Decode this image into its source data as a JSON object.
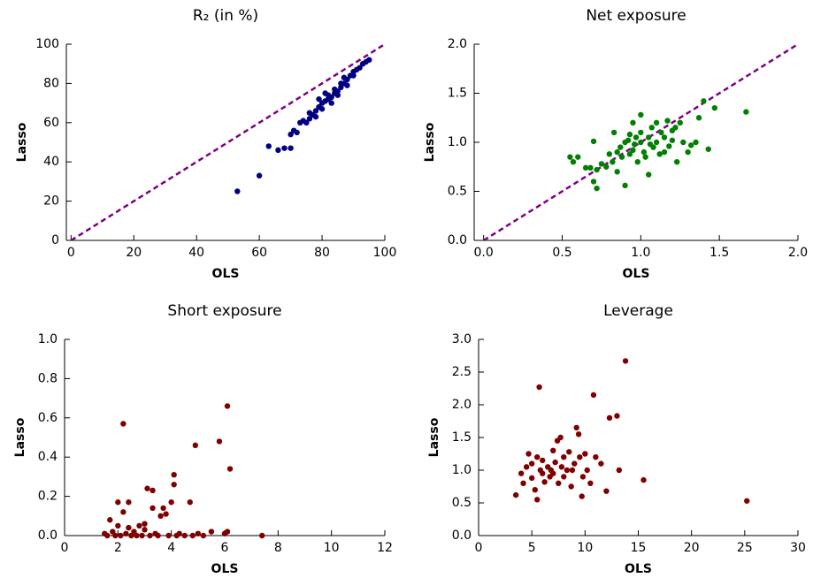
{
  "chart_data": [
    {
      "type": "scatter",
      "title": "R₂ (in %)",
      "x_label": "OLS",
      "y_label": "Lasso",
      "color": "#000080",
      "xlim": [
        -1.5,
        100
      ],
      "ylim": [
        0,
        100
      ],
      "xticks": [
        0,
        20,
        40,
        60,
        80,
        100
      ],
      "yticks": [
        0,
        20,
        40,
        60,
        80,
        100
      ],
      "diagonal": {
        "x": [
          0,
          100
        ],
        "y": [
          0,
          100
        ],
        "color": "#800080"
      },
      "x": [
        53,
        60,
        63,
        66,
        68,
        70,
        70,
        71,
        72,
        73,
        74,
        75,
        76,
        77,
        78,
        78,
        79,
        80,
        80,
        81,
        82,
        82,
        83,
        84,
        84,
        85,
        86,
        86,
        87,
        88,
        88,
        89,
        90,
        90,
        91,
        92,
        93,
        94,
        95,
        85,
        83,
        87,
        79,
        76,
        81
      ],
      "values": [
        25,
        33,
        48,
        46,
        47,
        47,
        54,
        56,
        55,
        60,
        61,
        60,
        62,
        64,
        63,
        66,
        68,
        67,
        70,
        71,
        72,
        74,
        73,
        75,
        77,
        76,
        78,
        80,
        80,
        82,
        79,
        84,
        84,
        86,
        87,
        88,
        90,
        91,
        92,
        74,
        70,
        83,
        72,
        65,
        75
      ]
    },
    {
      "type": "scatter",
      "title": "Net exposure",
      "x_label": "OLS",
      "y_label": "Lasso",
      "color": "#008000",
      "xlim": [
        -0.06,
        2.0
      ],
      "ylim": [
        0,
        2.0
      ],
      "xticks": [
        {
          "value": 0,
          "label": "0.0"
        },
        {
          "value": 0.5,
          "label": "0.5"
        },
        {
          "value": 1,
          "label": "1.0"
        },
        {
          "value": 1.5,
          "label": "1.5"
        },
        {
          "value": 2,
          "label": "2.0"
        }
      ],
      "yticks": [
        {
          "value": 0,
          "label": "0.0"
        },
        {
          "value": 0.5,
          "label": "0.5"
        },
        {
          "value": 1,
          "label": "1.0"
        },
        {
          "value": 1.5,
          "label": "1.5"
        },
        {
          "value": 2,
          "label": "2.0"
        }
      ],
      "diagonal": {
        "x": [
          0,
          2
        ],
        "y": [
          0,
          2
        ],
        "color": "#800080"
      },
      "x": [
        0.55,
        0.57,
        0.6,
        0.65,
        0.68,
        0.7,
        0.7,
        0.72,
        0.72,
        0.75,
        0.78,
        0.8,
        0.82,
        0.83,
        0.85,
        0.85,
        0.87,
        0.88,
        0.9,
        0.9,
        0.92,
        0.93,
        0.95,
        0.95,
        0.97,
        0.98,
        1.0,
        1.0,
        1.0,
        1.02,
        1.03,
        1.05,
        1.05,
        1.07,
        1.08,
        1.1,
        1.1,
        1.12,
        1.13,
        1.15,
        1.15,
        1.17,
        1.18,
        1.2,
        1.2,
        1.22,
        1.23,
        1.25,
        1.27,
        1.3,
        1.32,
        1.35,
        1.37,
        1.4,
        1.43,
        1.47,
        1.67,
        0.96,
        1.06,
        0.93
      ],
      "values": [
        0.85,
        0.8,
        0.85,
        0.74,
        0.74,
        0.6,
        1.01,
        0.53,
        0.72,
        0.78,
        0.75,
        0.88,
        0.8,
        1.1,
        0.7,
        0.9,
        0.95,
        0.85,
        1.0,
        0.56,
        1.02,
        0.88,
        0.92,
        1.2,
        1.05,
        0.8,
        1.0,
        1.1,
        1.28,
        0.9,
        0.85,
        1.05,
        0.67,
        1.15,
        0.95,
        1.0,
        1.2,
        0.88,
        1.1,
        1.05,
        0.9,
        1.22,
        0.96,
        1.12,
        1.02,
        1.15,
        0.8,
        1.2,
        1.0,
        0.9,
        0.97,
        1.0,
        1.25,
        1.42,
        0.93,
        1.35,
        1.31,
        0.98,
        0.98,
        1.08
      ]
    },
    {
      "type": "scatter",
      "title": "Short exposure",
      "x_label": "OLS",
      "y_label": "Lasso",
      "color": "#800000",
      "xlim": [
        0,
        12
      ],
      "ylim": [
        0,
        1.0
      ],
      "xticks": [
        0,
        2,
        4,
        6,
        8,
        10,
        12
      ],
      "yticks": [
        {
          "value": 0,
          "label": "0.0"
        },
        {
          "value": 0.2,
          "label": "0.2"
        },
        {
          "value": 0.4,
          "label": "0.4"
        },
        {
          "value": 0.6,
          "label": "0.6"
        },
        {
          "value": 0.8,
          "label": "0.8"
        },
        {
          "value": 1,
          "label": "1.0"
        }
      ],
      "x": [
        1.5,
        1.6,
        1.7,
        1.8,
        1.9,
        2,
        2,
        2.1,
        2.2,
        2.2,
        2.3,
        2.4,
        2.4,
        2.5,
        2.6,
        2.7,
        2.8,
        2.9,
        3,
        3,
        3.1,
        3.2,
        3.3,
        3.3,
        3.4,
        3.5,
        3.6,
        3.7,
        3.8,
        3.9,
        4,
        4.1,
        4.1,
        4.2,
        4.3,
        4.5,
        4.7,
        4.8,
        4.9,
        5,
        5.2,
        5.5,
        5.8,
        6,
        6.1,
        6.1,
        6.2,
        7.4
      ],
      "values": [
        0.01,
        0,
        0.08,
        0.02,
        0,
        0.17,
        0.05,
        0,
        0.57,
        0.12,
        0.01,
        0.04,
        0.17,
        0,
        0.02,
        0,
        0.05,
        0,
        0.03,
        0.06,
        0.24,
        0,
        0.23,
        0.14,
        0.01,
        0,
        0.1,
        0.14,
        0.11,
        0,
        0.17,
        0.31,
        0.26,
        0,
        0.01,
        0,
        0.17,
        0,
        0.46,
        0.01,
        0,
        0.02,
        0.48,
        0.01,
        0.66,
        0.02,
        0.34,
        0
      ]
    },
    {
      "type": "scatter",
      "title": "Leverage",
      "x_label": "OLS",
      "y_label": "Lasso",
      "color": "#800000",
      "xlim": [
        0,
        30
      ],
      "ylim": [
        0,
        3.0
      ],
      "xticks": [
        0,
        5,
        10,
        15,
        20,
        25,
        30
      ],
      "yticks": [
        {
          "value": 0,
          "label": "0.0"
        },
        {
          "value": 0.5,
          "label": "0.5"
        },
        {
          "value": 1,
          "label": "1.0"
        },
        {
          "value": 1.5,
          "label": "1.5"
        },
        {
          "value": 2,
          "label": "2.0"
        },
        {
          "value": 2.5,
          "label": "2.5"
        },
        {
          "value": 3,
          "label": "3.0"
        }
      ],
      "x": [
        3.5,
        4,
        4.2,
        4.5,
        4.7,
        5,
        5,
        5.3,
        5.5,
        5.5,
        5.7,
        5.8,
        6,
        6,
        6.2,
        6.5,
        6.7,
        7,
        7,
        7.2,
        7.4,
        7.5,
        7.7,
        7.8,
        8,
        8,
        8.3,
        8.5,
        8.7,
        9,
        9.2,
        9.4,
        9.5,
        9.7,
        10,
        10.2,
        10.5,
        10.8,
        11,
        11.5,
        12,
        12.3,
        13,
        13.2,
        13.8,
        15.5,
        25.2,
        6.8,
        8.8,
        9.8
      ],
      "values": [
        0.62,
        0.95,
        0.8,
        1.05,
        1.25,
        0.88,
        1.1,
        0.7,
        1.2,
        0.55,
        2.27,
        1.0,
        0.95,
        1.15,
        0.82,
        1.05,
        0.9,
        1.3,
        0.95,
        1.12,
        1.45,
        0.8,
        1.5,
        1.05,
        0.9,
        1.2,
        1.0,
        1.28,
        0.75,
        1.1,
        1.65,
        1.55,
        1.2,
        0.6,
        1.25,
        1.0,
        0.8,
        2.15,
        1.2,
        1.1,
        0.68,
        1.8,
        1.83,
        1.0,
        2.67,
        0.85,
        0.53,
        1.0,
        1.0,
        0.9
      ]
    }
  ]
}
